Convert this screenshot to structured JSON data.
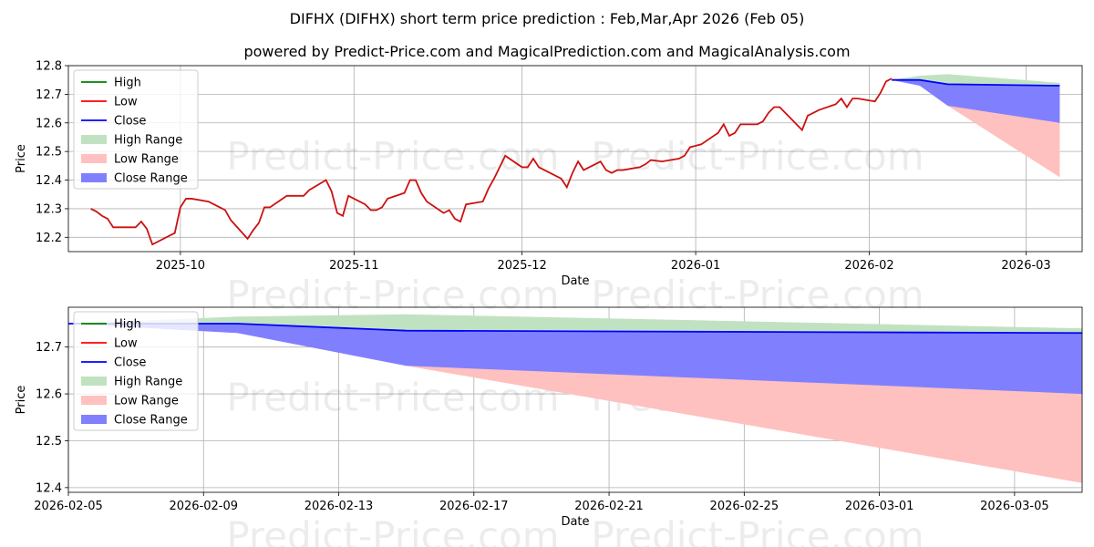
{
  "chart_data": [
    {
      "type": "line",
      "title": "DIFHX (DIFHX) short term price prediction : Feb,Mar,Apr 2026 (Feb 05)",
      "subtitle": "powered by Predict-Price.com and MagicalPrediction.com and MagicalAnalysis.com",
      "xlabel": "Date",
      "ylabel": "Price",
      "watermark": "Predict-Price.com",
      "xlim": [
        "2025-09-11",
        "2026-03-11"
      ],
      "ylim": [
        12.15,
        12.8
      ],
      "x_ticks": [
        "2025-10",
        "2025-11",
        "2025-12",
        "2026-01",
        "2026-02",
        "2026-03"
      ],
      "y_ticks": [
        "12.2",
        "12.3",
        "12.4",
        "12.5",
        "12.6",
        "12.7",
        "12.8"
      ],
      "legend": [
        "High",
        "Low",
        "Close",
        "High Range",
        "Low Range",
        "Close Range"
      ],
      "legend_position": "upper-left",
      "grid": true,
      "colors": {
        "high": "#008000",
        "low": "#ff0000",
        "close": "#0000ff",
        "high_range": "#c1e2c1",
        "low_range": "#ffc0c0",
        "close_range": "#8080ff",
        "history": "#cc1111"
      },
      "history": {
        "dates": [
          "2025-09-15",
          "2025-09-16",
          "2025-09-17",
          "2025-09-18",
          "2025-09-19",
          "2025-09-22",
          "2025-09-23",
          "2025-09-24",
          "2025-09-25",
          "2025-09-26",
          "2025-09-29",
          "2025-09-30",
          "2025-10-01",
          "2025-10-02",
          "2025-10-03",
          "2025-10-06",
          "2025-10-07",
          "2025-10-08",
          "2025-10-09",
          "2025-10-10",
          "2025-10-13",
          "2025-10-14",
          "2025-10-15",
          "2025-10-16",
          "2025-10-17",
          "2025-10-20",
          "2025-10-21",
          "2025-10-22",
          "2025-10-23",
          "2025-10-24",
          "2025-10-27",
          "2025-10-28",
          "2025-10-29",
          "2025-10-30",
          "2025-10-31",
          "2025-11-03",
          "2025-11-04",
          "2025-11-05",
          "2025-11-06",
          "2025-11-07",
          "2025-11-10",
          "2025-11-11",
          "2025-11-12",
          "2025-11-13",
          "2025-11-14",
          "2025-11-17",
          "2025-11-18",
          "2025-11-19",
          "2025-11-20",
          "2025-11-21",
          "2025-11-24",
          "2025-11-25",
          "2025-11-26",
          "2025-11-28",
          "2025-12-01",
          "2025-12-02",
          "2025-12-03",
          "2025-12-04",
          "2025-12-05",
          "2025-12-08",
          "2025-12-09",
          "2025-12-10",
          "2025-12-11",
          "2025-12-12",
          "2025-12-15",
          "2025-12-16",
          "2025-12-17",
          "2025-12-18",
          "2025-12-19",
          "2025-12-22",
          "2025-12-23",
          "2025-12-24",
          "2025-12-26",
          "2025-12-29",
          "2025-12-30",
          "2025-12-31",
          "2026-01-02",
          "2026-01-05",
          "2026-01-06",
          "2026-01-07",
          "2026-01-08",
          "2026-01-09",
          "2026-01-12",
          "2026-01-13",
          "2026-01-14",
          "2026-01-15",
          "2026-01-16",
          "2026-01-20",
          "2026-01-21",
          "2026-01-22",
          "2026-01-23",
          "2026-01-26",
          "2026-01-27",
          "2026-01-28",
          "2026-01-29",
          "2026-01-30",
          "2026-02-02",
          "2026-02-03",
          "2026-02-04",
          "2026-02-05"
        ],
        "values": [
          12.3,
          12.29,
          12.275,
          12.265,
          12.235,
          12.235,
          12.235,
          12.255,
          12.23,
          12.175,
          12.205,
          12.215,
          12.305,
          12.335,
          12.335,
          12.325,
          12.315,
          12.305,
          12.295,
          12.26,
          12.195,
          12.225,
          12.25,
          12.305,
          12.305,
          12.345,
          12.345,
          12.345,
          12.345,
          12.365,
          12.4,
          12.36,
          12.285,
          12.275,
          12.345,
          12.315,
          12.295,
          12.295,
          12.305,
          12.335,
          12.355,
          12.4,
          12.4,
          12.355,
          12.325,
          12.285,
          12.295,
          12.265,
          12.255,
          12.315,
          12.325,
          12.37,
          12.405,
          12.485,
          12.445,
          12.445,
          12.475,
          12.445,
          12.435,
          12.405,
          12.375,
          12.425,
          12.465,
          12.435,
          12.465,
          12.435,
          12.425,
          12.435,
          12.435,
          12.445,
          12.455,
          12.47,
          12.465,
          12.475,
          12.485,
          12.515,
          12.525,
          12.565,
          12.595,
          12.555,
          12.565,
          12.595,
          12.595,
          12.605,
          12.635,
          12.655,
          12.655,
          12.575,
          12.625,
          12.635,
          12.645,
          12.665,
          12.685,
          12.655,
          12.685,
          12.685,
          12.675,
          12.705,
          12.745,
          12.755
        ]
      },
      "forecast": {
        "dates": [
          "2026-02-05",
          "2026-02-10",
          "2026-02-15",
          "2026-03-07"
        ],
        "high": [
          12.75,
          12.765,
          12.77,
          12.74
        ],
        "low": [
          12.75,
          12.73,
          12.66,
          12.41
        ],
        "close": [
          12.75,
          12.75,
          12.735,
          12.73
        ],
        "close_low": [
          12.75,
          12.73,
          12.66,
          12.6
        ]
      }
    },
    {
      "type": "line",
      "xlabel": "Date",
      "ylabel": "Price",
      "watermark": "Predict-Price.com",
      "xlim": [
        "2026-02-05",
        "2026-03-07"
      ],
      "ylim": [
        12.39,
        12.785
      ],
      "x_ticks": [
        "2026-02-05",
        "2026-02-09",
        "2026-02-13",
        "2026-02-17",
        "2026-02-21",
        "2026-02-25",
        "2026-03-01",
        "2026-03-05"
      ],
      "y_ticks": [
        "12.4",
        "12.5",
        "12.6",
        "12.7"
      ],
      "legend": [
        "High",
        "Low",
        "Close",
        "High Range",
        "Low Range",
        "Close Range"
      ],
      "legend_position": "upper-left",
      "grid": true,
      "forecast": {
        "dates": [
          "2026-02-05",
          "2026-02-10",
          "2026-02-15",
          "2026-03-07"
        ],
        "high": [
          12.75,
          12.765,
          12.77,
          12.74
        ],
        "low": [
          12.75,
          12.73,
          12.66,
          12.41
        ],
        "close": [
          12.75,
          12.75,
          12.735,
          12.73
        ],
        "close_low": [
          12.75,
          12.73,
          12.66,
          12.6
        ]
      }
    }
  ]
}
